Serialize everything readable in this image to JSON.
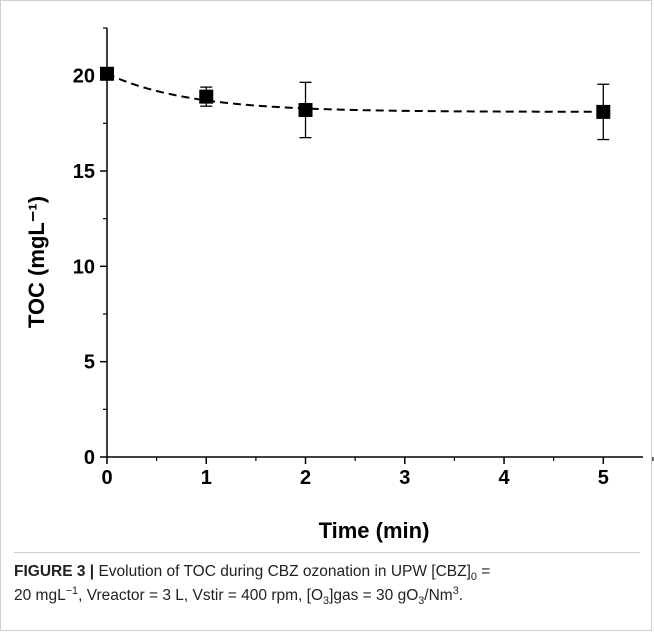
{
  "chart_data": {
    "type": "scatter",
    "xlabel": "Time (min)",
    "ylabel": "TOC (mgL⁻¹)",
    "xlim": [
      0,
      5.4
    ],
    "ylim": [
      0,
      22.5
    ],
    "x_ticks": [
      "0",
      "1",
      "2",
      "3",
      "4",
      "5"
    ],
    "y_ticks": [
      "0",
      "5",
      "10",
      "15",
      "20"
    ],
    "series": [
      {
        "points": [
          {
            "x": 0,
            "y": 20.1,
            "err": 0
          },
          {
            "x": 1,
            "y": 18.9,
            "err": 0.5
          },
          {
            "x": 2,
            "y": 18.2,
            "err": 1.45
          },
          {
            "x": 5,
            "y": 18.1,
            "err": 1.45
          }
        ],
        "marker": "square",
        "color": "#000000"
      }
    ],
    "fit_curve": {
      "style": "dashed",
      "color": "#000000",
      "y_start": 20.1,
      "y_end": 18.1,
      "rate": 1.2
    },
    "grid": false
  },
  "caption": {
    "figure_label": "FIGURE 3 |",
    "line1_text": " Evolution of TOC during CBZ ozonation in UPW [CBZ]",
    "line1_sub": "0",
    "line1_tail": " =",
    "line2_a": "20 mgL",
    "line2_sup": "−1",
    "line2_b": ", Vreactor = 3 L, Vstir = 400 rpm, [O",
    "line2_sub1": "3",
    "line2_c": "]gas = 30 gO",
    "line2_sub2": "3",
    "line2_d": "/Nm",
    "line2_sup2": "3",
    "line2_e": "."
  }
}
